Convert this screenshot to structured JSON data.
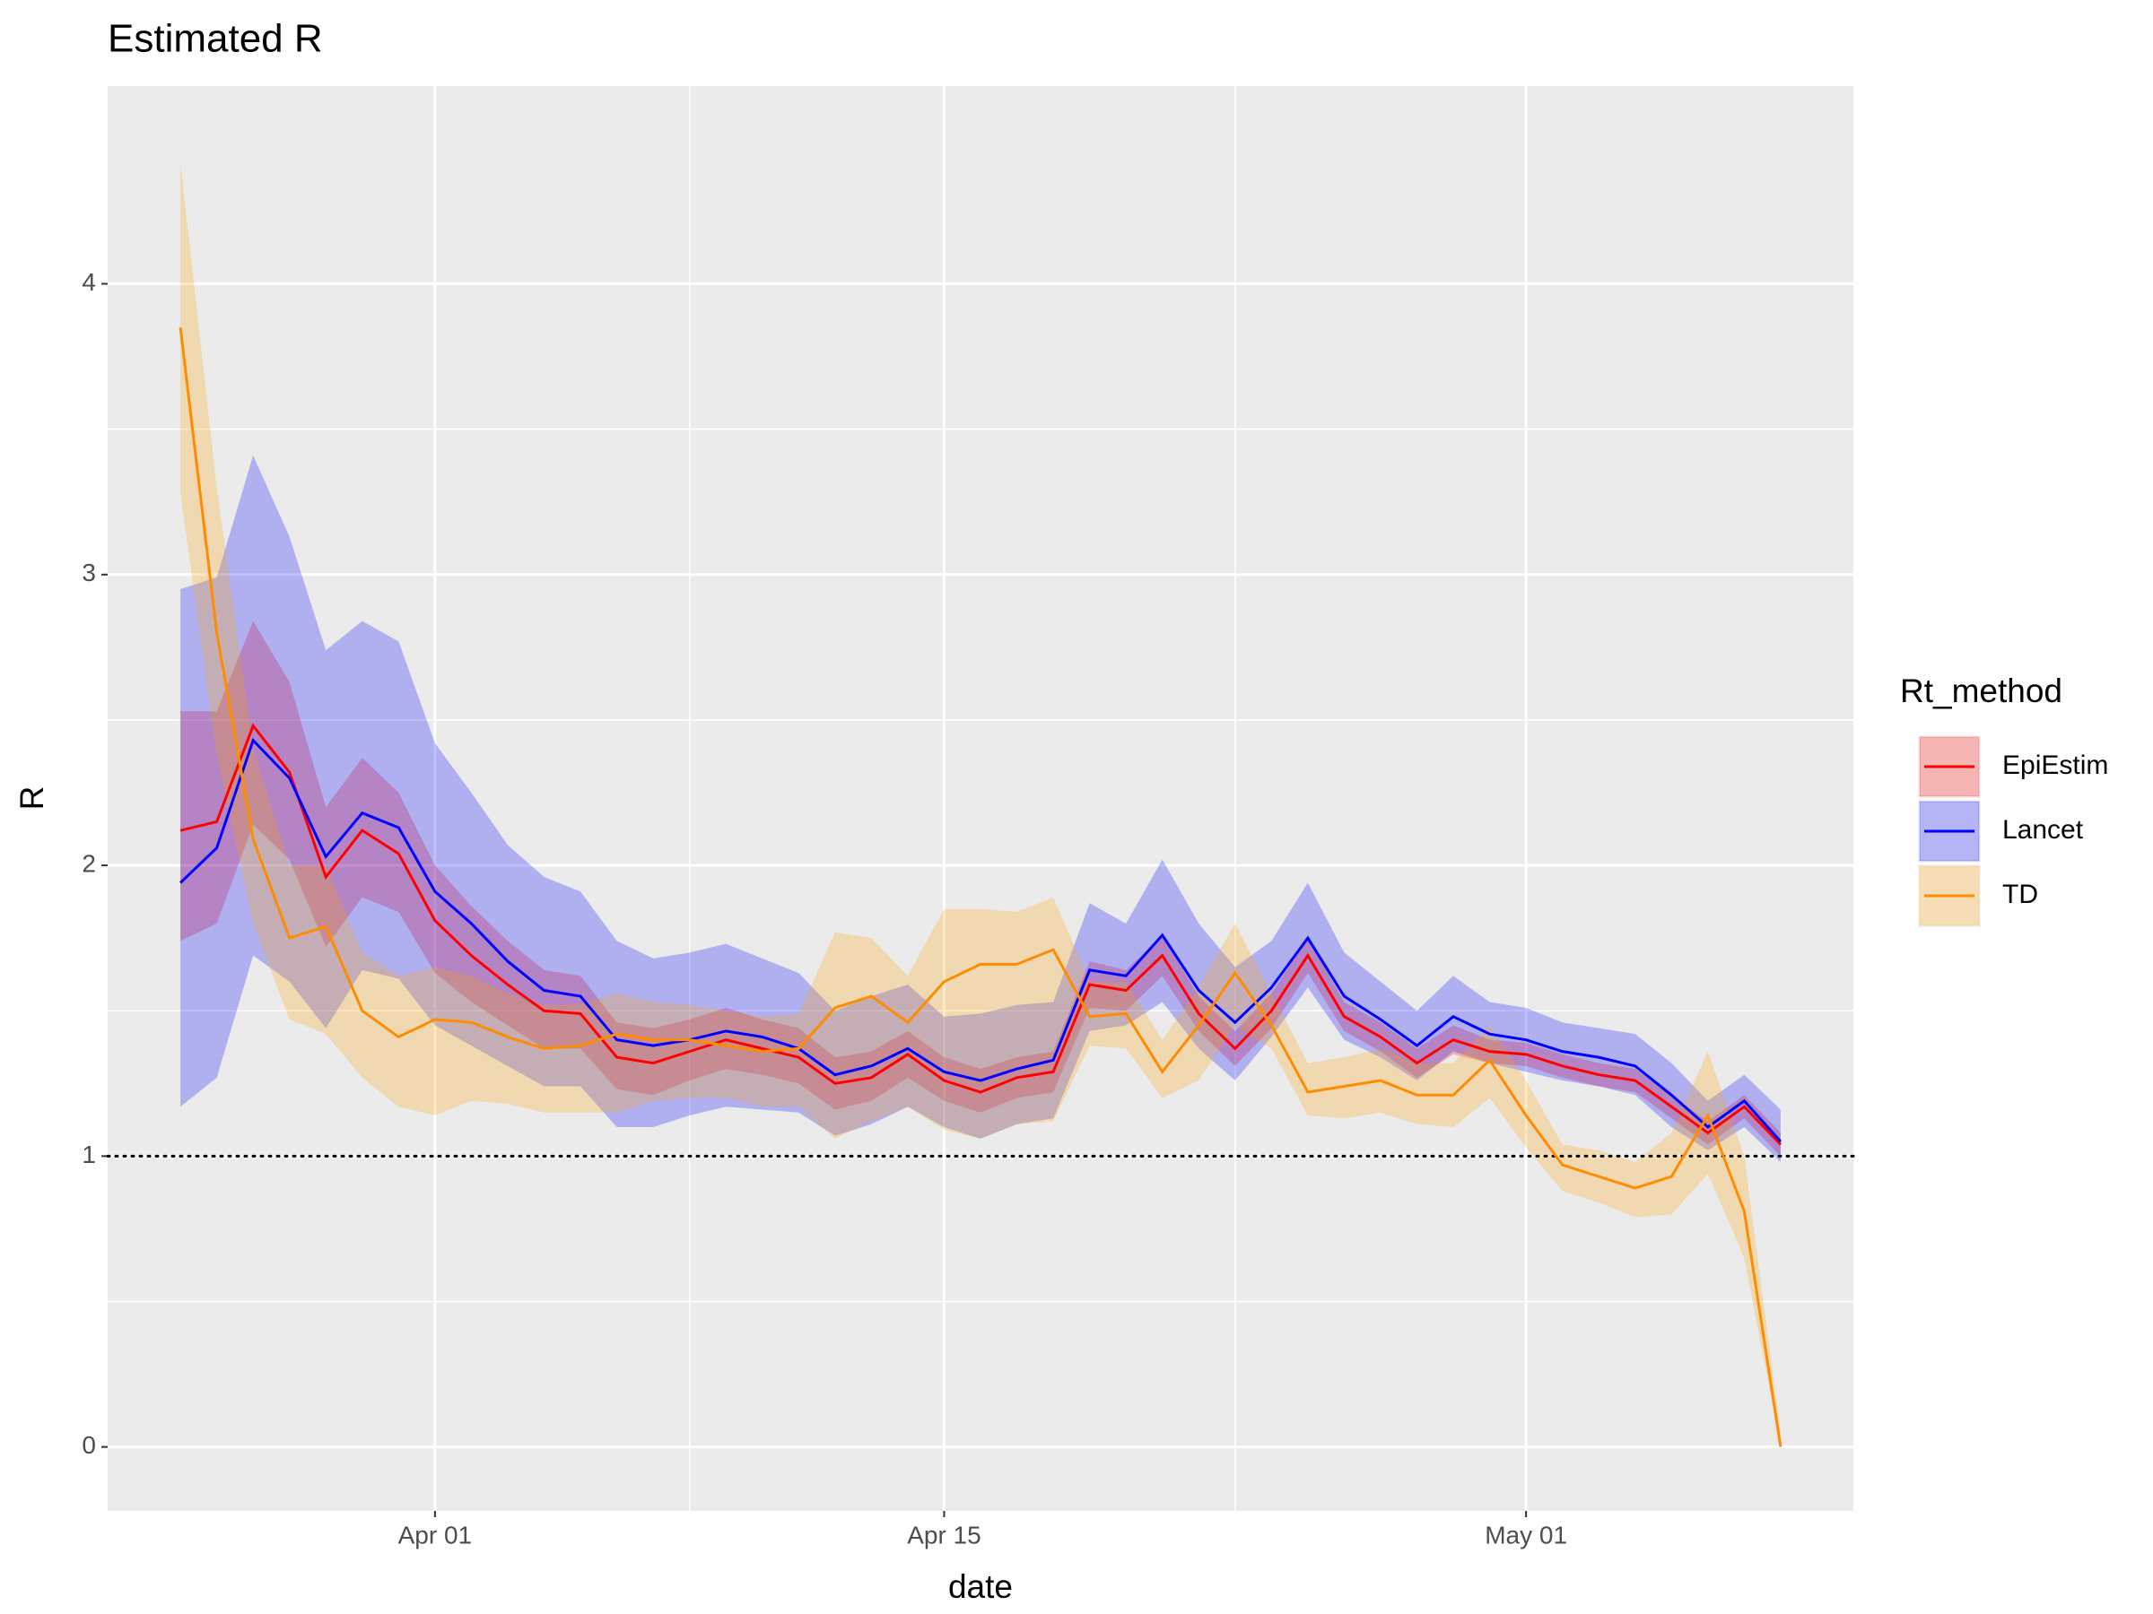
{
  "chart_data": {
    "type": "line",
    "title": "Estimated R",
    "x_label": "date",
    "y_label": "R",
    "legend_title": "Rt_method",
    "x": [
      "03-25",
      "03-26",
      "03-27",
      "03-28",
      "03-29",
      "03-30",
      "03-31",
      "04-01",
      "04-02",
      "04-03",
      "04-04",
      "04-05",
      "04-06",
      "04-07",
      "04-08",
      "04-09",
      "04-10",
      "04-11",
      "04-12",
      "04-13",
      "04-14",
      "04-15",
      "04-16",
      "04-17",
      "04-18",
      "04-19",
      "04-20",
      "04-21",
      "04-22",
      "04-23",
      "04-24",
      "04-25",
      "04-26",
      "04-27",
      "04-28",
      "04-29",
      "04-30",
      "05-01",
      "05-02",
      "05-03",
      "05-04",
      "05-05",
      "05-06",
      "05-07",
      "05-08"
    ],
    "xlim": [
      "03-23",
      "05-10"
    ],
    "xticks": [
      {
        "value": "04-01",
        "label": "Apr 01"
      },
      {
        "value": "04-15",
        "label": "Apr 15"
      },
      {
        "value": "05-01",
        "label": "May 01"
      }
    ],
    "ylim": [
      -0.22,
      4.68
    ],
    "yticks": [
      0,
      1,
      2,
      3,
      4
    ],
    "hline": 1,
    "grid": true,
    "ribbon_alpha": 0.25,
    "series": [
      {
        "name": "EpiEstim",
        "color": "#ff0000",
        "values": [
          2.12,
          2.15,
          2.48,
          2.32,
          1.96,
          2.12,
          2.04,
          1.81,
          1.69,
          1.59,
          1.5,
          1.49,
          1.34,
          1.32,
          1.36,
          1.4,
          1.37,
          1.34,
          1.25,
          1.27,
          1.35,
          1.26,
          1.22,
          1.27,
          1.29,
          1.59,
          1.57,
          1.69,
          1.49,
          1.37,
          1.5,
          1.69,
          1.48,
          1.41,
          1.32,
          1.4,
          1.36,
          1.35,
          1.31,
          1.28,
          1.26,
          1.17,
          1.08,
          1.17,
          1.04
        ],
        "upper": [
          2.53,
          2.53,
          2.84,
          2.63,
          2.2,
          2.37,
          2.25,
          2.0,
          1.86,
          1.74,
          1.64,
          1.62,
          1.46,
          1.44,
          1.47,
          1.51,
          1.47,
          1.44,
          1.34,
          1.36,
          1.43,
          1.34,
          1.3,
          1.34,
          1.36,
          1.67,
          1.64,
          1.76,
          1.55,
          1.43,
          1.56,
          1.75,
          1.53,
          1.46,
          1.37,
          1.45,
          1.4,
          1.39,
          1.35,
          1.32,
          1.3,
          1.21,
          1.12,
          1.21,
          1.08
        ],
        "lower": [
          1.74,
          1.8,
          2.14,
          2.02,
          1.72,
          1.89,
          1.84,
          1.63,
          1.53,
          1.45,
          1.37,
          1.37,
          1.23,
          1.21,
          1.26,
          1.3,
          1.28,
          1.25,
          1.16,
          1.19,
          1.27,
          1.19,
          1.15,
          1.2,
          1.22,
          1.51,
          1.5,
          1.62,
          1.43,
          1.31,
          1.44,
          1.63,
          1.43,
          1.36,
          1.27,
          1.35,
          1.32,
          1.31,
          1.27,
          1.24,
          1.22,
          1.13,
          1.04,
          1.13,
          1.0
        ]
      },
      {
        "name": "Lancet",
        "color": "#0000ff",
        "values": [
          1.94,
          2.06,
          2.43,
          2.3,
          2.03,
          2.18,
          2.13,
          1.91,
          1.8,
          1.67,
          1.57,
          1.55,
          1.4,
          1.38,
          1.4,
          1.43,
          1.41,
          1.37,
          1.28,
          1.31,
          1.37,
          1.29,
          1.26,
          1.3,
          1.33,
          1.64,
          1.62,
          1.76,
          1.57,
          1.46,
          1.58,
          1.75,
          1.55,
          1.47,
          1.38,
          1.48,
          1.42,
          1.4,
          1.36,
          1.34,
          1.31,
          1.21,
          1.1,
          1.19,
          1.05
        ],
        "upper": [
          2.95,
          2.99,
          3.41,
          3.13,
          2.74,
          2.84,
          2.77,
          2.42,
          2.25,
          2.07,
          1.96,
          1.91,
          1.74,
          1.68,
          1.7,
          1.73,
          1.68,
          1.63,
          1.5,
          1.55,
          1.59,
          1.48,
          1.49,
          1.52,
          1.53,
          1.87,
          1.8,
          2.02,
          1.8,
          1.65,
          1.74,
          1.94,
          1.7,
          1.6,
          1.5,
          1.62,
          1.53,
          1.51,
          1.46,
          1.44,
          1.42,
          1.32,
          1.19,
          1.28,
          1.16
        ],
        "lower": [
          1.17,
          1.27,
          1.69,
          1.6,
          1.44,
          1.64,
          1.61,
          1.45,
          1.38,
          1.31,
          1.24,
          1.24,
          1.1,
          1.1,
          1.14,
          1.17,
          1.16,
          1.15,
          1.07,
          1.11,
          1.17,
          1.1,
          1.06,
          1.11,
          1.13,
          1.43,
          1.45,
          1.53,
          1.37,
          1.26,
          1.41,
          1.58,
          1.4,
          1.34,
          1.26,
          1.36,
          1.32,
          1.29,
          1.26,
          1.24,
          1.21,
          1.1,
          1.02,
          1.1,
          0.98
        ]
      },
      {
        "name": "TD",
        "color": "#ff8c00",
        "fill": "#ffa500",
        "values": [
          3.85,
          2.8,
          2.09,
          1.75,
          1.79,
          1.5,
          1.41,
          1.47,
          1.46,
          1.41,
          1.37,
          1.38,
          1.42,
          1.4,
          1.4,
          1.38,
          1.36,
          1.37,
          1.51,
          1.55,
          1.46,
          1.6,
          1.66,
          1.66,
          1.71,
          1.48,
          1.49,
          1.29,
          1.45,
          1.63,
          1.45,
          1.22,
          1.24,
          1.26,
          1.21,
          1.21,
          1.33,
          1.14,
          0.97,
          0.93,
          0.89,
          0.93,
          1.14,
          0.81,
          0
        ],
        "upper": [
          4.42,
          3.3,
          2.4,
          2.0,
          2.0,
          1.7,
          1.62,
          1.65,
          1.62,
          1.56,
          1.52,
          1.52,
          1.56,
          1.53,
          1.52,
          1.5,
          1.48,
          1.49,
          1.77,
          1.75,
          1.62,
          1.85,
          1.85,
          1.84,
          1.89,
          1.6,
          1.6,
          1.4,
          1.58,
          1.8,
          1.56,
          1.32,
          1.34,
          1.37,
          1.32,
          1.32,
          1.45,
          1.26,
          1.04,
          1.02,
          0.98,
          1.08,
          1.36,
          1.0,
          0.05
        ],
        "lower": [
          3.28,
          2.38,
          1.8,
          1.47,
          1.42,
          1.27,
          1.17,
          1.14,
          1.19,
          1.18,
          1.15,
          1.15,
          1.15,
          1.19,
          1.2,
          1.2,
          1.17,
          1.17,
          1.06,
          1.12,
          1.17,
          1.09,
          1.06,
          1.11,
          1.12,
          1.38,
          1.37,
          1.2,
          1.26,
          1.45,
          1.37,
          1.14,
          1.13,
          1.15,
          1.11,
          1.1,
          1.2,
          1.03,
          0.88,
          0.84,
          0.79,
          0.8,
          0.94,
          0.65,
          0
        ]
      }
    ]
  }
}
